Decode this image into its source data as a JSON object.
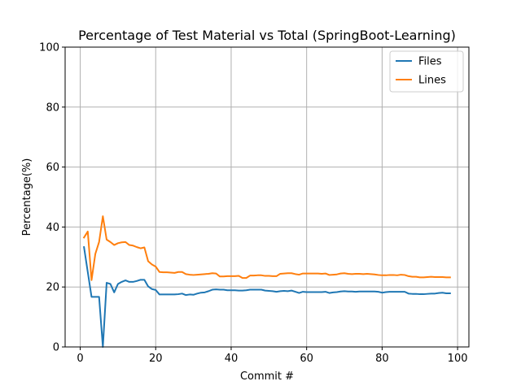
{
  "chart_data": {
    "type": "line",
    "title": "Percentage of Test Material vs Total (SpringBoot-Learning)",
    "xlabel": "Commit #",
    "ylabel": "Percentage(%)",
    "xlim": [
      -4,
      103
    ],
    "ylim": [
      0,
      100
    ],
    "xticks": [
      0,
      20,
      40,
      60,
      80,
      100
    ],
    "yticks": [
      0,
      20,
      40,
      60,
      80,
      100
    ],
    "grid": true,
    "legend_position": "top-right",
    "series": [
      {
        "name": "Files",
        "color": "#1f77b4",
        "x": [
          1,
          2,
          3,
          4,
          5,
          6,
          7,
          8,
          9,
          10,
          11,
          12,
          13,
          14,
          15,
          16,
          17,
          18,
          19,
          20,
          21,
          22,
          23,
          24,
          25,
          26,
          27,
          28,
          29,
          30,
          31,
          32,
          33,
          34,
          35,
          36,
          37,
          38,
          39,
          40,
          41,
          42,
          43,
          44,
          45,
          46,
          47,
          48,
          49,
          50,
          51,
          52,
          53,
          54,
          55,
          56,
          57,
          58,
          59,
          60,
          61,
          62,
          63,
          64,
          65,
          66,
          67,
          68,
          69,
          70,
          71,
          72,
          73,
          74,
          75,
          76,
          77,
          78,
          79,
          80,
          81,
          82,
          83,
          84,
          85,
          86,
          87,
          88,
          89,
          90,
          91,
          92,
          93,
          94,
          95,
          96,
          97,
          98
        ],
        "y": [
          33.3,
          25,
          16.7,
          16.7,
          16.7,
          0,
          21.4,
          21,
          18.2,
          21,
          21.7,
          22.2,
          21.7,
          21.7,
          22,
          22.4,
          22.4,
          20.2,
          19.3,
          19,
          17.5,
          17.5,
          17.5,
          17.5,
          17.5,
          17.6,
          17.8,
          17.3,
          17.5,
          17.4,
          17.8,
          18.1,
          18.2,
          18.6,
          19.1,
          19.2,
          19.1,
          19.1,
          18.9,
          18.9,
          18.9,
          18.8,
          18.8,
          18.9,
          19.1,
          19.1,
          19.1,
          19.1,
          18.8,
          18.7,
          18.6,
          18.4,
          18.6,
          18.7,
          18.6,
          18.8,
          18.4,
          18,
          18.4,
          18.3,
          18.3,
          18.3,
          18.3,
          18.3,
          18.4,
          18,
          18.2,
          18.3,
          18.5,
          18.6,
          18.5,
          18.5,
          18.4,
          18.5,
          18.5,
          18.5,
          18.5,
          18.5,
          18.4,
          18.1,
          18.3,
          18.4,
          18.4,
          18.4,
          18.4,
          18.4,
          17.8,
          17.7,
          17.7,
          17.6,
          17.6,
          17.7,
          17.8,
          17.8,
          18,
          18.1,
          17.9,
          17.9
        ]
      },
      {
        "name": "Lines",
        "color": "#ff7f0e",
        "x": [
          1,
          2,
          3,
          4,
          5,
          6,
          7,
          8,
          9,
          10,
          11,
          12,
          13,
          14,
          15,
          16,
          17,
          18,
          19,
          20,
          21,
          22,
          23,
          24,
          25,
          26,
          27,
          28,
          29,
          30,
          31,
          32,
          33,
          34,
          35,
          36,
          37,
          38,
          39,
          40,
          41,
          42,
          43,
          44,
          45,
          46,
          47,
          48,
          49,
          50,
          51,
          52,
          53,
          54,
          55,
          56,
          57,
          58,
          59,
          60,
          61,
          62,
          63,
          64,
          65,
          66,
          67,
          68,
          69,
          70,
          71,
          72,
          73,
          74,
          75,
          76,
          77,
          78,
          79,
          80,
          81,
          82,
          83,
          84,
          85,
          86,
          87,
          88,
          89,
          90,
          91,
          92,
          93,
          94,
          95,
          96,
          97,
          98
        ],
        "y": [
          36.5,
          38.5,
          22.3,
          31,
          35,
          43.6,
          35.8,
          35,
          34,
          34.6,
          34.9,
          35,
          34,
          33.8,
          33.3,
          32.9,
          33.2,
          28.6,
          27.5,
          26.8,
          25,
          24.9,
          24.9,
          24.8,
          24.7,
          25,
          25,
          24.3,
          24.1,
          24,
          24.1,
          24.2,
          24.3,
          24.4,
          24.6,
          24.5,
          23.5,
          23.5,
          23.6,
          23.6,
          23.6,
          23.7,
          23,
          23,
          23.8,
          23.8,
          23.9,
          23.9,
          23.7,
          23.7,
          23.6,
          23.6,
          24.4,
          24.5,
          24.6,
          24.6,
          24.3,
          24.1,
          24.5,
          24.5,
          24.5,
          24.5,
          24.5,
          24.4,
          24.5,
          24,
          24.1,
          24.2,
          24.5,
          24.6,
          24.4,
          24.3,
          24.4,
          24.4,
          24.3,
          24.4,
          24.3,
          24.2,
          24,
          23.9,
          23.9,
          24,
          24,
          23.9,
          24.1,
          24,
          23.6,
          23.4,
          23.4,
          23.2,
          23.2,
          23.3,
          23.4,
          23.3,
          23.3,
          23.3,
          23.2,
          23.2
        ]
      }
    ]
  }
}
